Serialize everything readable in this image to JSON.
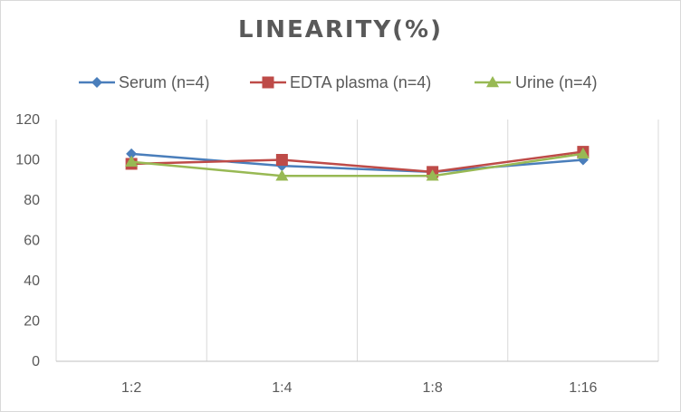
{
  "chart_data": {
    "type": "line",
    "title": "LINEARITY(%)",
    "xlabel": "",
    "ylabel": "",
    "categories": [
      "1:2",
      "1:4",
      "1:8",
      "1:16"
    ],
    "ylim": [
      0,
      120
    ],
    "yticks": [
      0,
      20,
      40,
      60,
      80,
      100,
      120
    ],
    "grid": "vertical",
    "legend_position": "top",
    "series": [
      {
        "name": "Serum (n=4)",
        "values": [
          103,
          97,
          94,
          100
        ],
        "color": "#4a7ebb",
        "marker": "diamond"
      },
      {
        "name": "EDTA plasma (n=4)",
        "values": [
          98,
          100,
          94,
          104
        ],
        "color": "#be4b48",
        "marker": "square"
      },
      {
        "name": "Urine (n=4)",
        "values": [
          99,
          92,
          92,
          103
        ],
        "color": "#98b954",
        "marker": "triangle"
      }
    ]
  }
}
